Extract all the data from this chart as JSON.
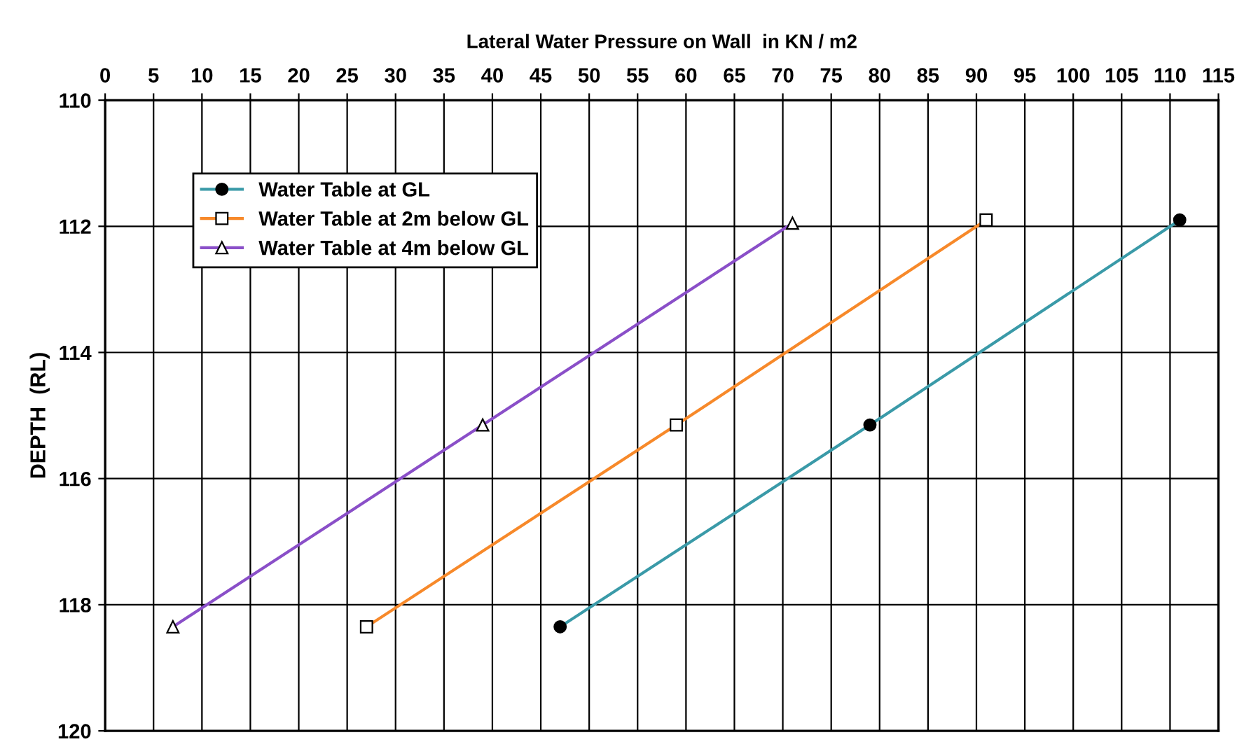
{
  "chart_data": {
    "type": "line",
    "xlabel": "Lateral Water Pressure on Wall  in KN / m2",
    "ylabel": "DEPTH  (RL)",
    "xlim": [
      0,
      115
    ],
    "xticks": [
      0,
      5,
      10,
      15,
      20,
      25,
      30,
      35,
      40,
      45,
      50,
      55,
      60,
      65,
      70,
      75,
      80,
      85,
      90,
      95,
      100,
      105,
      110,
      115
    ],
    "ylim": [
      120,
      110
    ],
    "yticks": [
      110,
      112,
      114,
      116,
      118,
      120
    ],
    "grid": true,
    "legend": "top left",
    "series": [
      {
        "name": "Water Table at GL",
        "color": "#3a9aa8",
        "marker": "circle",
        "x": [
          47,
          79,
          111
        ],
        "values": [
          118.35,
          115.15,
          111.9
        ]
      },
      {
        "name": "Water Table at 2m below GL",
        "color": "#f7892a",
        "marker": "square",
        "x": [
          27,
          59,
          91
        ],
        "values": [
          118.35,
          115.15,
          111.9
        ]
      },
      {
        "name": "Water Table at 4m below GL",
        "color": "#8a4fc8",
        "marker": "triangle",
        "x": [
          7,
          39,
          71
        ],
        "values": [
          118.35,
          115.15,
          111.95
        ]
      }
    ]
  }
}
